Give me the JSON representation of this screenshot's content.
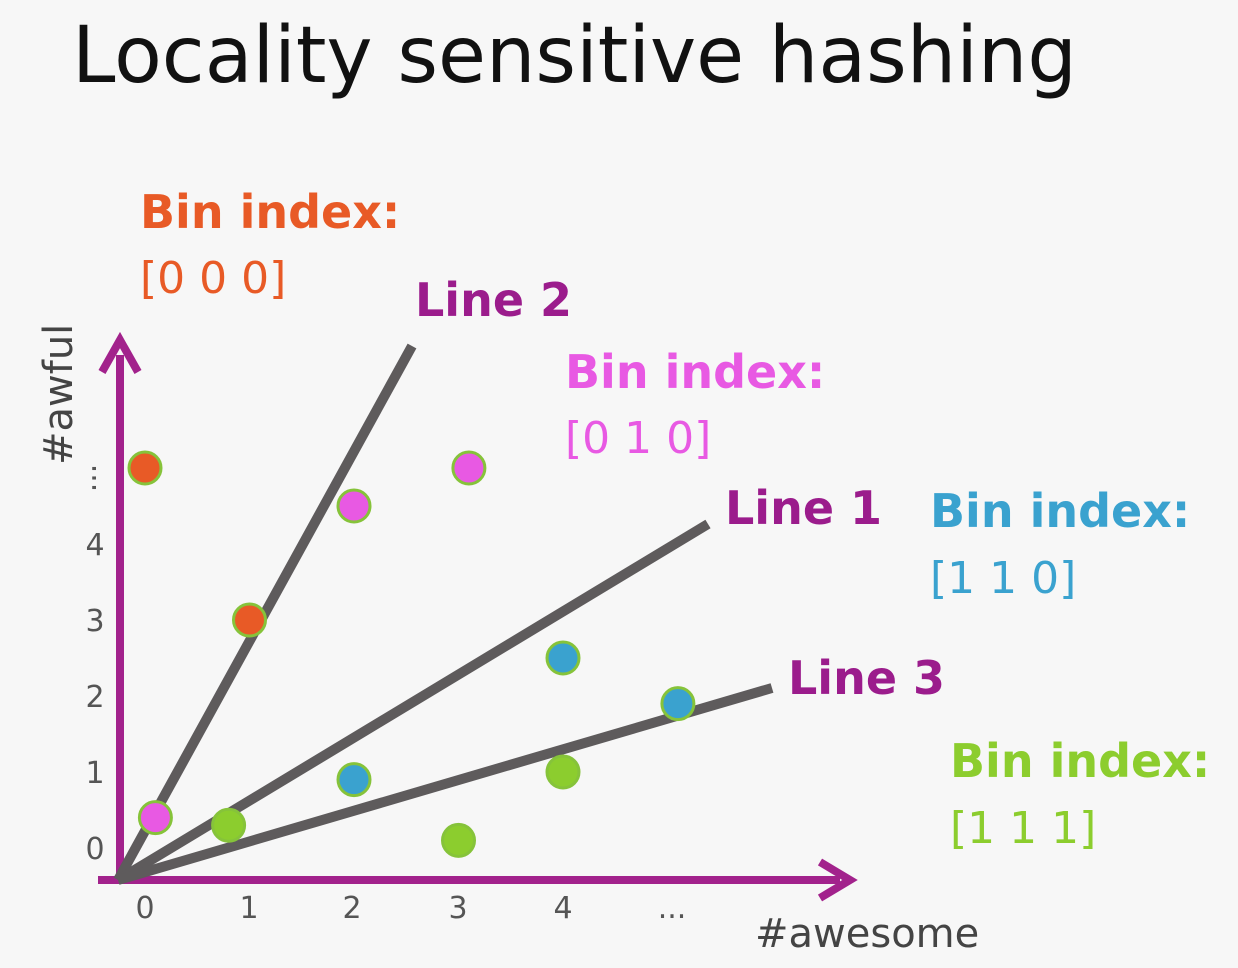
{
  "title": "Locality sensitive hashing",
  "axes": {
    "x_label": "#awesome",
    "y_label": "#awful",
    "x_ticks": [
      "0",
      "1",
      "2",
      "3",
      "4",
      "..."
    ],
    "y_ticks": [
      "0",
      "1",
      "2",
      "3",
      "4",
      "..."
    ],
    "color": "#a2228c"
  },
  "lines": [
    {
      "name": "Line 1",
      "color": "#5e5b5c",
      "label_color": "#9b1c8c"
    },
    {
      "name": "Line 2",
      "color": "#5e5b5c",
      "label_color": "#9b1c8c"
    },
    {
      "name": "Line 3",
      "color": "#5e5b5c",
      "label_color": "#9b1c8c"
    }
  ],
  "bins": [
    {
      "heading": "Bin index:",
      "code": "[0 0 0]",
      "color": "#e85a26"
    },
    {
      "heading": "Bin index:",
      "code": "[0 1 0]",
      "color": "#e859e3"
    },
    {
      "heading": "Bin index:",
      "code": "[1 1 0]",
      "color": "#3aa2cf"
    },
    {
      "heading": "Bin index:",
      "code": "[1 1 1]",
      "color": "#8ccd2e"
    }
  ],
  "points": [
    {
      "bin": "[0 0 0]",
      "awesome": 0,
      "awful": 5,
      "color": "#e85a26"
    },
    {
      "bin": "[0 0 0]",
      "awesome": 1,
      "awful": 3,
      "color": "#e85a26"
    },
    {
      "bin": "[0 1 0]",
      "awesome": 0.1,
      "awful": 0.4,
      "color": "#e859e3"
    },
    {
      "bin": "[0 1 0]",
      "awesome": 2,
      "awful": 4.5,
      "color": "#e859e3"
    },
    {
      "bin": "[0 1 0]",
      "awesome": 3.1,
      "awful": 5,
      "color": "#e859e3"
    },
    {
      "bin": "[1 1 0]",
      "awesome": 2,
      "awful": 0.9,
      "color": "#3aa2cf"
    },
    {
      "bin": "[1 1 0]",
      "awesome": 4,
      "awful": 2.5,
      "color": "#3aa2cf"
    },
    {
      "bin": "[1 1 0]",
      "awesome": 5.1,
      "awful": 1.9,
      "color": "#3aa2cf"
    },
    {
      "bin": "[1 1 1]",
      "awesome": 0.8,
      "awful": 0.3,
      "color": "#8ccd2e"
    },
    {
      "bin": "[1 1 1]",
      "awesome": 3,
      "awful": 0.1,
      "color": "#8ccd2e"
    },
    {
      "bin": "[1 1 1]",
      "awesome": 4,
      "awful": 1,
      "color": "#8ccd2e"
    }
  ]
}
